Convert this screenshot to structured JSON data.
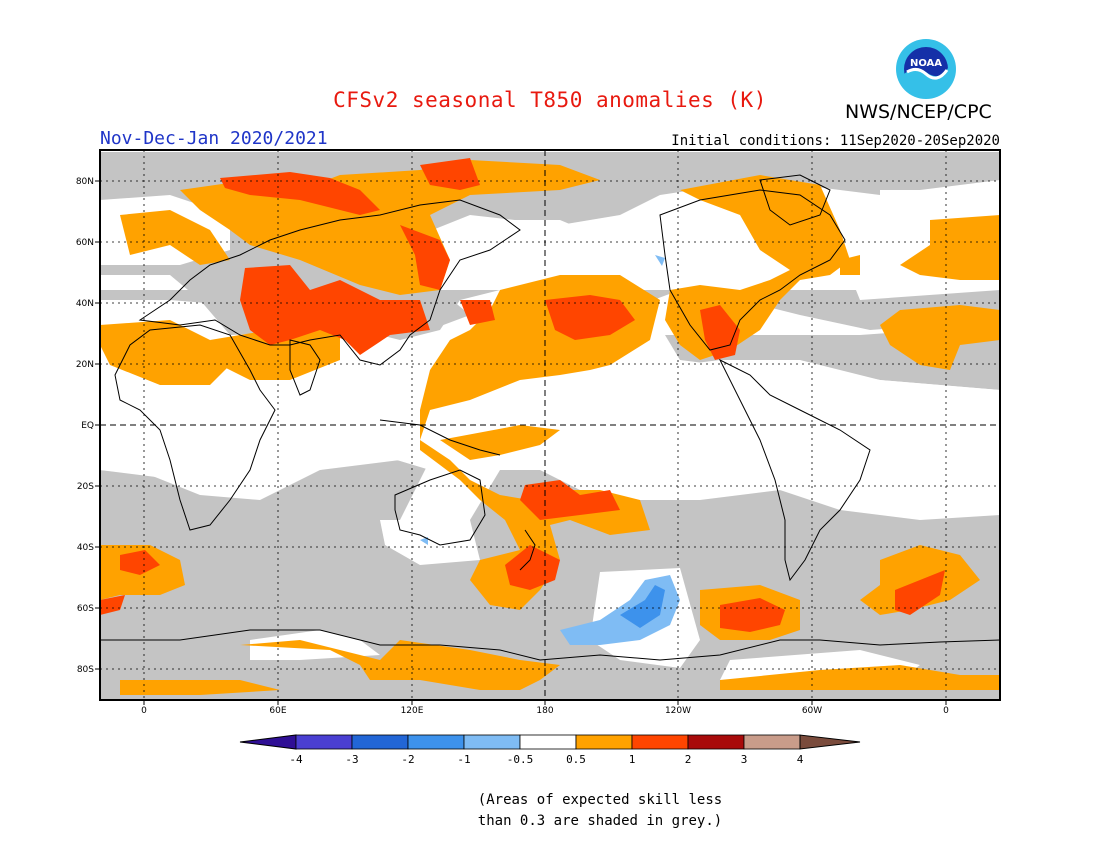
{
  "title": "CFSv2 seasonal T850 anomalies (K)",
  "agency": "NWS/NCEP/CPC",
  "logo_text": "NOAA",
  "period": "Nov-Dec-Jan 2020/2021",
  "initial_conditions": "Initial conditions: 11Sep2020-20Sep2020",
  "lat_labels": [
    "80N",
    "60N",
    "40N",
    "20N",
    "EQ",
    "20S",
    "40S",
    "60S",
    "80S"
  ],
  "lon_labels": [
    "0",
    "60E",
    "120E",
    "180",
    "120W",
    "60W",
    "0"
  ],
  "legend": {
    "colors": [
      "#2f0f95",
      "#4a3fd2",
      "#2266d6",
      "#3d92ec",
      "#7fbcf4",
      "#ffffff",
      "#ffa200",
      "#ff4500",
      "#a80a0a",
      "#c99c8a",
      "#7a4b3c"
    ],
    "tick_labels": [
      "-4",
      "-3",
      "-2",
      "-1",
      "-0.5",
      "0.5",
      "1",
      "2",
      "3",
      "4"
    ]
  },
  "palette": {
    "grey": "#c4c4c4",
    "orange": "#ffa200",
    "red": "#ff4500",
    "blue": "#7fbcf4",
    "dark_blue": "#3d92ec"
  },
  "footnote": [
    "(Areas of expected skill less",
    "than 0.3 are shaded in grey.)"
  ]
}
